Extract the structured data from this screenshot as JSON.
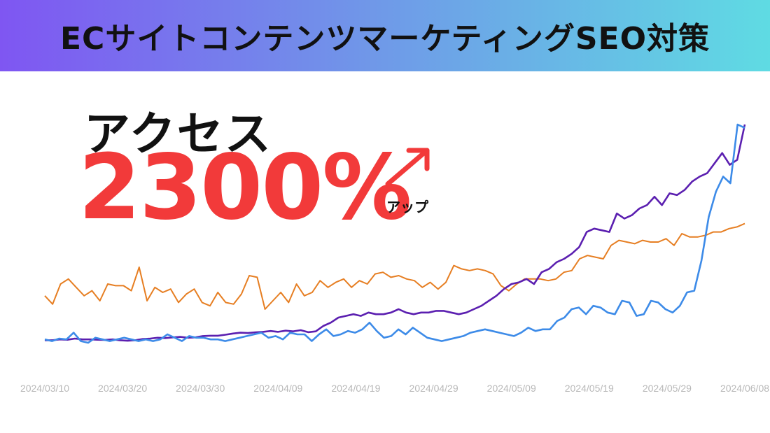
{
  "banner": {
    "title": "ECサイトコンテンツマーケティングSEO対策"
  },
  "kpi": {
    "label": "アクセス",
    "value": "2300%",
    "suffix": "アップ"
  },
  "colors": {
    "orange": "#e67e22",
    "purple": "#5b1fb0",
    "blue": "#3d8be8",
    "accent": "#f23a3a"
  },
  "icons": {
    "arrow": "arrow-up-right-icon"
  },
  "chart_data": {
    "type": "line",
    "x_ticks": [
      "2024/03/10",
      "2024/03/20",
      "2024/03/30",
      "2024/04/09",
      "2024/04/19",
      "2024/04/29",
      "2024/05/09",
      "2024/05/19",
      "2024/05/29",
      "2024/06/08"
    ],
    "x_start": "2024/03/10",
    "x_end": "2024/06/08",
    "y_axis_visible": false,
    "grid": false,
    "legend": "none",
    "series": [
      {
        "color": "#e67e22",
        "values": [
          28,
          23,
          35,
          38,
          33,
          28,
          31,
          25,
          35,
          34,
          34,
          31,
          45,
          25,
          33,
          30,
          32,
          24,
          29,
          32,
          24,
          22,
          30,
          24,
          23,
          29,
          40,
          39,
          20,
          25,
          30,
          24,
          35,
          28,
          30,
          37,
          33,
          36,
          38,
          33,
          37,
          35,
          41,
          42,
          39,
          40,
          38,
          37,
          33,
          36,
          32,
          36,
          46,
          44,
          43,
          44,
          43,
          41,
          34,
          31,
          35,
          38,
          38,
          38,
          37,
          38,
          42,
          43,
          50,
          52,
          51,
          50,
          58,
          61,
          60,
          59,
          61,
          60,
          60,
          62,
          58,
          65,
          63,
          63,
          64,
          66,
          66,
          68,
          69,
          71
        ]
      },
      {
        "color": "#5b1fb0",
        "values": [
          1.5,
          1.5,
          2,
          1.8,
          2.5,
          2,
          2,
          1.8,
          1.7,
          2,
          1.5,
          1.2,
          1.5,
          2.2,
          2.5,
          3,
          2.8,
          3.2,
          3.5,
          3,
          3.2,
          4,
          4.2,
          4.2,
          4.8,
          5.5,
          6,
          5.8,
          6.2,
          6.5,
          7,
          6.5,
          7.2,
          6.8,
          7.5,
          6.3,
          6.8,
          10,
          12,
          15,
          16,
          17,
          16,
          18,
          17,
          17,
          18,
          20,
          18,
          17,
          18,
          18,
          19,
          19,
          18,
          17,
          18,
          20,
          22,
          25,
          28,
          32,
          35,
          36,
          38,
          35,
          42,
          44,
          48,
          50,
          53,
          57,
          66,
          68,
          67,
          66,
          77,
          74,
          76,
          80,
          82,
          87,
          82,
          89,
          88,
          91,
          96,
          99,
          101,
          107,
          113,
          106,
          109,
          130
        ]
      },
      {
        "color": "#3d8be8",
        "values": [
          2,
          1,
          2.5,
          2,
          6,
          1,
          0,
          3,
          2,
          1,
          2,
          3,
          2,
          1,
          2,
          1,
          2,
          5,
          3,
          1,
          4,
          3,
          3,
          2,
          2,
          1,
          2,
          3,
          4,
          5,
          6,
          3,
          4,
          2,
          6,
          5,
          5,
          1,
          5,
          8,
          4,
          5,
          7,
          6,
          8,
          12,
          7,
          3,
          4,
          8,
          5,
          9,
          6,
          3,
          2,
          1,
          2,
          3,
          4,
          6,
          7,
          8,
          7,
          6,
          5,
          4,
          6,
          9,
          7,
          8,
          8,
          13,
          15,
          20,
          21,
          17,
          22,
          21,
          18,
          17,
          25,
          24,
          16,
          17,
          25,
          24,
          20,
          18,
          22,
          30,
          31,
          49,
          75,
          90,
          99,
          95,
          130,
          128
        ]
      }
    ]
  }
}
